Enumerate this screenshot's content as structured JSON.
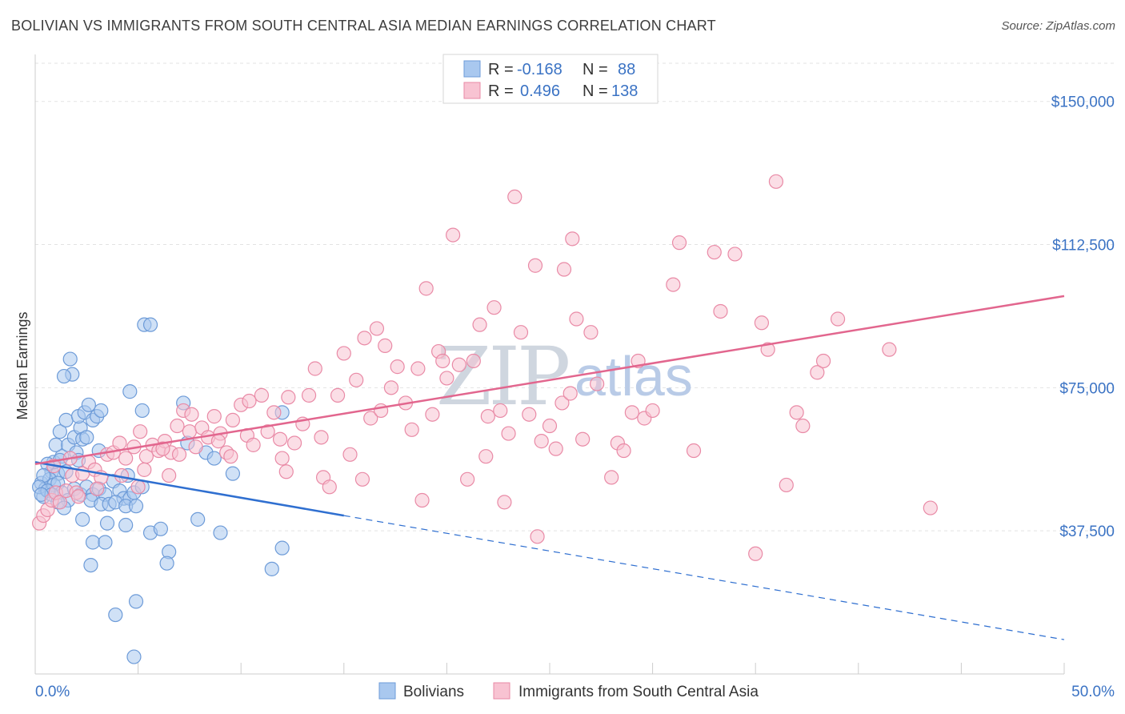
{
  "title": "BOLIVIAN VS IMMIGRANTS FROM SOUTH CENTRAL ASIA MEDIAN EARNINGS CORRELATION CHART",
  "source": "Source: ZipAtlas.com",
  "watermark": {
    "zip": "ZIP",
    "atlas": "atlas"
  },
  "legend": {
    "rows": [
      {
        "r_label": "R =",
        "r_value": "-0.168",
        "n_label": "N =",
        "n_value": "88",
        "color": "#a9c8ef",
        "stroke": "#6d9bd8"
      },
      {
        "r_label": "R =",
        "r_value": "0.496",
        "n_label": "N =",
        "n_value": "138",
        "color": "#f8c3d2",
        "stroke": "#e98aa6"
      }
    ]
  },
  "bottom_legend": [
    {
      "label": "Bolivians",
      "color": "#a9c8ef",
      "stroke": "#6d9bd8"
    },
    {
      "label": "Immigrants from South Central Asia",
      "color": "#f8c3d2",
      "stroke": "#e98aa6"
    }
  ],
  "chart_data": {
    "type": "scatter",
    "title": "BOLIVIAN VS IMMIGRANTS FROM SOUTH CENTRAL ASIA MEDIAN EARNINGS CORRELATION CHART",
    "xlabel": "",
    "ylabel": "Median Earnings",
    "xlim": [
      0,
      50
    ],
    "ylim": [
      0,
      160000
    ],
    "x_tick_labels": [
      "0.0%",
      "50.0%"
    ],
    "y_ticks": [
      {
        "value": 37500,
        "label": "$37,500"
      },
      {
        "value": 75000,
        "label": "$75,000"
      },
      {
        "value": 112500,
        "label": "$112,500"
      },
      {
        "value": 150000,
        "label": "$150,000"
      }
    ],
    "grid": true,
    "series": [
      {
        "name": "Bolivians",
        "color": "#6d9bd8",
        "fill": "#a9c8ef",
        "trend": {
          "x0": 0,
          "y0": 55500,
          "x1": 15,
          "y1": 41500,
          "dash_to_x": 50,
          "dash_to_y": 9000,
          "color": "#2f6fd0"
        },
        "points": [
          [
            0.3,
            50000
          ],
          [
            0.5,
            48500
          ],
          [
            0.4,
            46500
          ],
          [
            0.8,
            53000
          ],
          [
            1.1,
            52500
          ],
          [
            0.9,
            55500
          ],
          [
            1.3,
            57000
          ],
          [
            1.0,
            60000
          ],
          [
            1.2,
            63500
          ],
          [
            1.5,
            66500
          ],
          [
            1.6,
            60000
          ],
          [
            1.9,
            62000
          ],
          [
            2.0,
            58000
          ],
          [
            2.2,
            64500
          ],
          [
            2.1,
            67500
          ],
          [
            2.4,
            68500
          ],
          [
            2.6,
            70500
          ],
          [
            2.8,
            66500
          ],
          [
            3.0,
            67500
          ],
          [
            3.2,
            69000
          ],
          [
            2.3,
            61500
          ],
          [
            1.8,
            78500
          ],
          [
            1.7,
            82500
          ],
          [
            4.6,
            74000
          ],
          [
            5.2,
            69000
          ],
          [
            7.2,
            71000
          ],
          [
            7.4,
            60500
          ],
          [
            8.3,
            58000
          ],
          [
            8.7,
            56500
          ],
          [
            9.6,
            52500
          ],
          [
            12.0,
            68500
          ],
          [
            5.3,
            91500
          ],
          [
            5.6,
            91500
          ],
          [
            1.4,
            78000
          ],
          [
            0.6,
            55000
          ],
          [
            0.7,
            51000
          ],
          [
            0.9,
            49500
          ],
          [
            1.1,
            50000
          ],
          [
            1.3,
            47500
          ],
          [
            1.6,
            45500
          ],
          [
            1.9,
            48500
          ],
          [
            2.2,
            47000
          ],
          [
            2.5,
            49000
          ],
          [
            2.8,
            47000
          ],
          [
            3.1,
            48500
          ],
          [
            3.4,
            47000
          ],
          [
            3.8,
            50500
          ],
          [
            4.1,
            48000
          ],
          [
            4.3,
            46000
          ],
          [
            4.6,
            46000
          ],
          [
            4.8,
            47500
          ],
          [
            5.2,
            49000
          ],
          [
            2.7,
            45500
          ],
          [
            3.2,
            44500
          ],
          [
            3.6,
            44500
          ],
          [
            3.9,
            45000
          ],
          [
            4.4,
            44000
          ],
          [
            4.9,
            44000
          ],
          [
            2.3,
            40500
          ],
          [
            3.5,
            39500
          ],
          [
            4.4,
            39000
          ],
          [
            5.6,
            37000
          ],
          [
            6.1,
            38000
          ],
          [
            6.5,
            32000
          ],
          [
            6.4,
            29000
          ],
          [
            7.9,
            40500
          ],
          [
            9.0,
            37000
          ],
          [
            12.0,
            33000
          ],
          [
            11.5,
            27500
          ],
          [
            2.8,
            34500
          ],
          [
            3.4,
            34500
          ],
          [
            2.7,
            28500
          ],
          [
            4.9,
            19000
          ],
          [
            3.9,
            15500
          ],
          [
            4.8,
            4500
          ],
          [
            1.2,
            56000
          ],
          [
            1.5,
            53000
          ],
          [
            0.4,
            52000
          ],
          [
            0.2,
            49000
          ],
          [
            0.6,
            48000
          ],
          [
            0.8,
            47000
          ],
          [
            1.1,
            45000
          ],
          [
            3.1,
            58500
          ],
          [
            2.1,
            56000
          ],
          [
            4.5,
            52000
          ],
          [
            2.5,
            62000
          ],
          [
            1.4,
            43500
          ],
          [
            0.3,
            47000
          ]
        ]
      },
      {
        "name": "Immigrants from South Central Asia",
        "color": "#e98aa6",
        "fill": "#f8c3d2",
        "trend": {
          "x0": 0,
          "y0": 55000,
          "x1": 50,
          "y1": 99000,
          "color": "#e2668e"
        },
        "points": [
          [
            0.2,
            39500
          ],
          [
            0.4,
            41500
          ],
          [
            0.6,
            43000
          ],
          [
            0.8,
            45500
          ],
          [
            1.0,
            47500
          ],
          [
            1.2,
            45000
          ],
          [
            1.5,
            48000
          ],
          [
            1.8,
            52000
          ],
          [
            2.0,
            47500
          ],
          [
            2.3,
            52500
          ],
          [
            2.6,
            55500
          ],
          [
            2.9,
            53500
          ],
          [
            3.2,
            51500
          ],
          [
            3.5,
            57500
          ],
          [
            3.8,
            58000
          ],
          [
            4.1,
            60500
          ],
          [
            4.4,
            56500
          ],
          [
            4.8,
            59500
          ],
          [
            5.1,
            63500
          ],
          [
            5.4,
            57000
          ],
          [
            5.7,
            60000
          ],
          [
            6.0,
            58500
          ],
          [
            6.3,
            61000
          ],
          [
            6.6,
            58000
          ],
          [
            6.9,
            65000
          ],
          [
            7.2,
            69000
          ],
          [
            7.5,
            63500
          ],
          [
            7.8,
            59500
          ],
          [
            8.1,
            64500
          ],
          [
            8.4,
            62000
          ],
          [
            8.7,
            67500
          ],
          [
            9.0,
            63000
          ],
          [
            9.3,
            58000
          ],
          [
            9.6,
            66500
          ],
          [
            10.0,
            70500
          ],
          [
            10.3,
            62500
          ],
          [
            10.6,
            60000
          ],
          [
            11.0,
            73000
          ],
          [
            11.3,
            63500
          ],
          [
            11.6,
            68500
          ],
          [
            12.0,
            56500
          ],
          [
            12.3,
            72500
          ],
          [
            12.6,
            60500
          ],
          [
            13.0,
            65500
          ],
          [
            13.3,
            73000
          ],
          [
            13.6,
            80000
          ],
          [
            14.0,
            51500
          ],
          [
            14.3,
            49000
          ],
          [
            14.7,
            73000
          ],
          [
            15.0,
            84000
          ],
          [
            15.3,
            57500
          ],
          [
            15.6,
            77000
          ],
          [
            16.0,
            88000
          ],
          [
            16.3,
            67000
          ],
          [
            16.6,
            90500
          ],
          [
            17.0,
            86000
          ],
          [
            17.3,
            75000
          ],
          [
            17.6,
            80500
          ],
          [
            18.0,
            71000
          ],
          [
            18.3,
            64000
          ],
          [
            18.6,
            80000
          ],
          [
            19.0,
            101000
          ],
          [
            19.3,
            68000
          ],
          [
            19.6,
            84500
          ],
          [
            20.0,
            77500
          ],
          [
            20.3,
            115000
          ],
          [
            20.6,
            81000
          ],
          [
            21.0,
            51000
          ],
          [
            21.3,
            82000
          ],
          [
            21.6,
            91500
          ],
          [
            22.0,
            67500
          ],
          [
            22.3,
            96000
          ],
          [
            22.6,
            69000
          ],
          [
            23.0,
            63000
          ],
          [
            23.3,
            125000
          ],
          [
            23.6,
            89500
          ],
          [
            24.0,
            68000
          ],
          [
            24.3,
            107000
          ],
          [
            24.6,
            61000
          ],
          [
            25.0,
            65000
          ],
          [
            25.3,
            59000
          ],
          [
            25.6,
            71000
          ],
          [
            26.0,
            73500
          ],
          [
            26.3,
            93000
          ],
          [
            26.6,
            61500
          ],
          [
            27.0,
            89500
          ],
          [
            27.3,
            76000
          ],
          [
            28.0,
            51500
          ],
          [
            28.3,
            60500
          ],
          [
            28.6,
            58500
          ],
          [
            29.0,
            68500
          ],
          [
            29.3,
            82000
          ],
          [
            29.6,
            67000
          ],
          [
            30.0,
            69000
          ],
          [
            31.0,
            102000
          ],
          [
            31.3,
            113000
          ],
          [
            32.0,
            58500
          ],
          [
            33.0,
            110500
          ],
          [
            33.3,
            95000
          ],
          [
            34.0,
            110000
          ],
          [
            35.0,
            31500
          ],
          [
            35.3,
            92000
          ],
          [
            35.6,
            85000
          ],
          [
            36.0,
            129000
          ],
          [
            36.5,
            49500
          ],
          [
            37.0,
            68500
          ],
          [
            37.3,
            65000
          ],
          [
            38.0,
            79000
          ],
          [
            38.3,
            82000
          ],
          [
            39.0,
            93000
          ],
          [
            41.5,
            85000
          ],
          [
            43.5,
            43500
          ],
          [
            2.1,
            46500
          ],
          [
            3.0,
            48500
          ],
          [
            4.2,
            52000
          ],
          [
            5.3,
            53500
          ],
          [
            6.5,
            52000
          ],
          [
            1.7,
            56500
          ],
          [
            0.9,
            54500
          ],
          [
            5.0,
            49000
          ],
          [
            7.0,
            57500
          ],
          [
            8.9,
            61000
          ],
          [
            11.9,
            61500
          ],
          [
            13.9,
            62000
          ],
          [
            18.8,
            45500
          ],
          [
            22.8,
            45000
          ],
          [
            24.4,
            36000
          ],
          [
            26.1,
            114000
          ],
          [
            25.7,
            106000
          ],
          [
            21.9,
            57000
          ],
          [
            15.9,
            51000
          ],
          [
            12.2,
            53000
          ],
          [
            16.8,
            69000
          ],
          [
            19.8,
            82000
          ],
          [
            10.4,
            71500
          ],
          [
            9.5,
            57000
          ],
          [
            7.6,
            68000
          ],
          [
            6.2,
            59000
          ]
        ]
      }
    ]
  }
}
